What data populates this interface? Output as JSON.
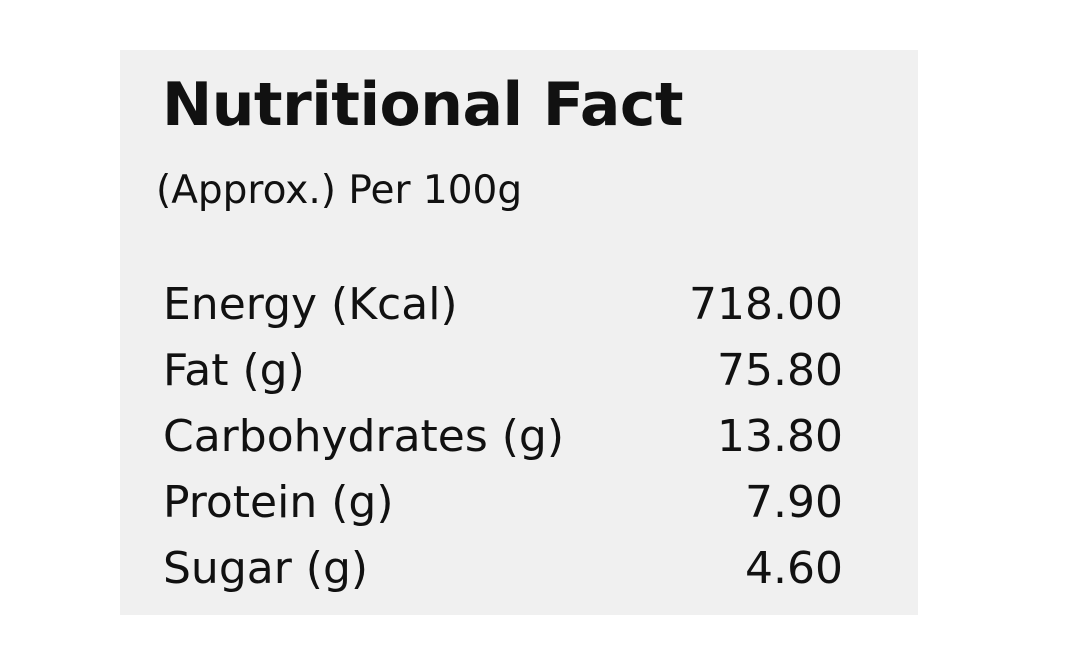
{
  "header": {
    "title": "Nutritional Fact",
    "subtitle": "(Approx.) Per 100g"
  },
  "table": {
    "rows": [
      [
        "Energy (Kcal)",
        "718.00"
      ],
      [
        "Fat (g)",
        "75.80"
      ],
      [
        "Carbohydrates (g)",
        "13.80"
      ],
      [
        "Protein (g)",
        "7.90"
      ],
      [
        "Sugar (g)",
        "4.60"
      ]
    ]
  }
}
